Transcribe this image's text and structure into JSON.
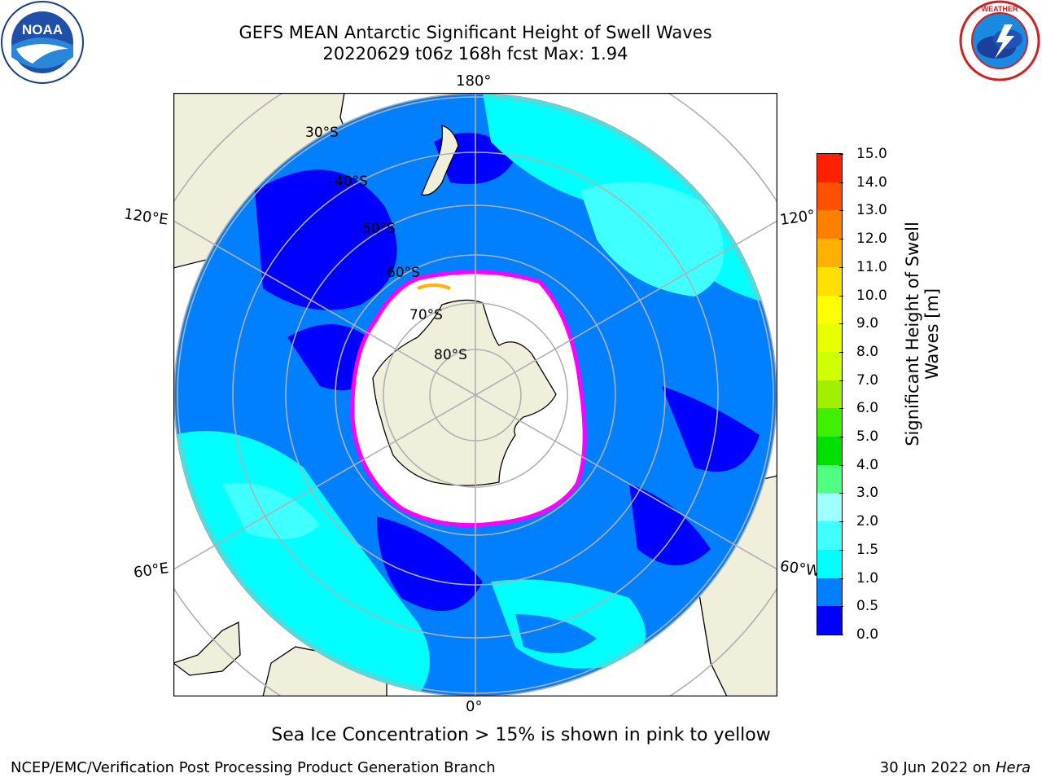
{
  "header": {
    "title_line1": "GEFS MEAN Antarctic Significant Height of Swell Waves",
    "title_line2": "20220629 t06z 168h fcst   Max: 1.94"
  },
  "logos": {
    "noaa": {
      "text": "NOAA",
      "ring_text": "NATIONAL OCEANIC AND ATMOSPHERIC ADMINISTRATION · U.S. DEPARTMENT OF COMMERCE"
    },
    "nws": {
      "ring_text": "NATIONAL WEATHER SERVICE"
    }
  },
  "map": {
    "projection": "south-polar-stereographic",
    "lon_labels": {
      "top": "180°",
      "bottom": "0°",
      "left_upper": "120°E",
      "left_lower": "60°E",
      "right_upper": "120°",
      "right_lower": "60°W"
    },
    "lat_labels": [
      "30°S",
      "40°S",
      "50°S",
      "60°S",
      "70°S",
      "80°S"
    ],
    "land_color": "#efefdb",
    "ice_line_color": "#ff00ff",
    "ocean_colors": {
      "dark": "#0000ff",
      "mid": "#0080ff",
      "light": "#00ffff",
      "pale": "#40ffff"
    }
  },
  "colorbar": {
    "label": "Significant Height of Swell Waves [m]",
    "label_line1": "Significant Height of Swell",
    "label_line2": "Waves [m]",
    "ticks": [
      "0.0",
      "0.5",
      "1.0",
      "1.5",
      "2.0",
      "3.0",
      "4.0",
      "5.0",
      "6.0",
      "7.0",
      "8.0",
      "9.0",
      "10.0",
      "11.0",
      "12.0",
      "13.0",
      "14.0",
      "15.0"
    ],
    "colors": [
      "#0000ff",
      "#0080ff",
      "#00ffff",
      "#40ffff",
      "#a0ffff",
      "#50ff80",
      "#00e000",
      "#40f000",
      "#a0f000",
      "#d0ff00",
      "#e8ff00",
      "#ffff00",
      "#ffe000",
      "#ffb000",
      "#ff8000",
      "#ff5000",
      "#ff2000",
      "#ff0000"
    ]
  },
  "note": "Sea Ice Concentration > 15% is shown in pink to yellow",
  "footer": {
    "left": "NCEP/EMC/Verification Post Processing Product Generation Branch",
    "right_date": "30 Jun 2022 on",
    "right_host": "Hera"
  }
}
